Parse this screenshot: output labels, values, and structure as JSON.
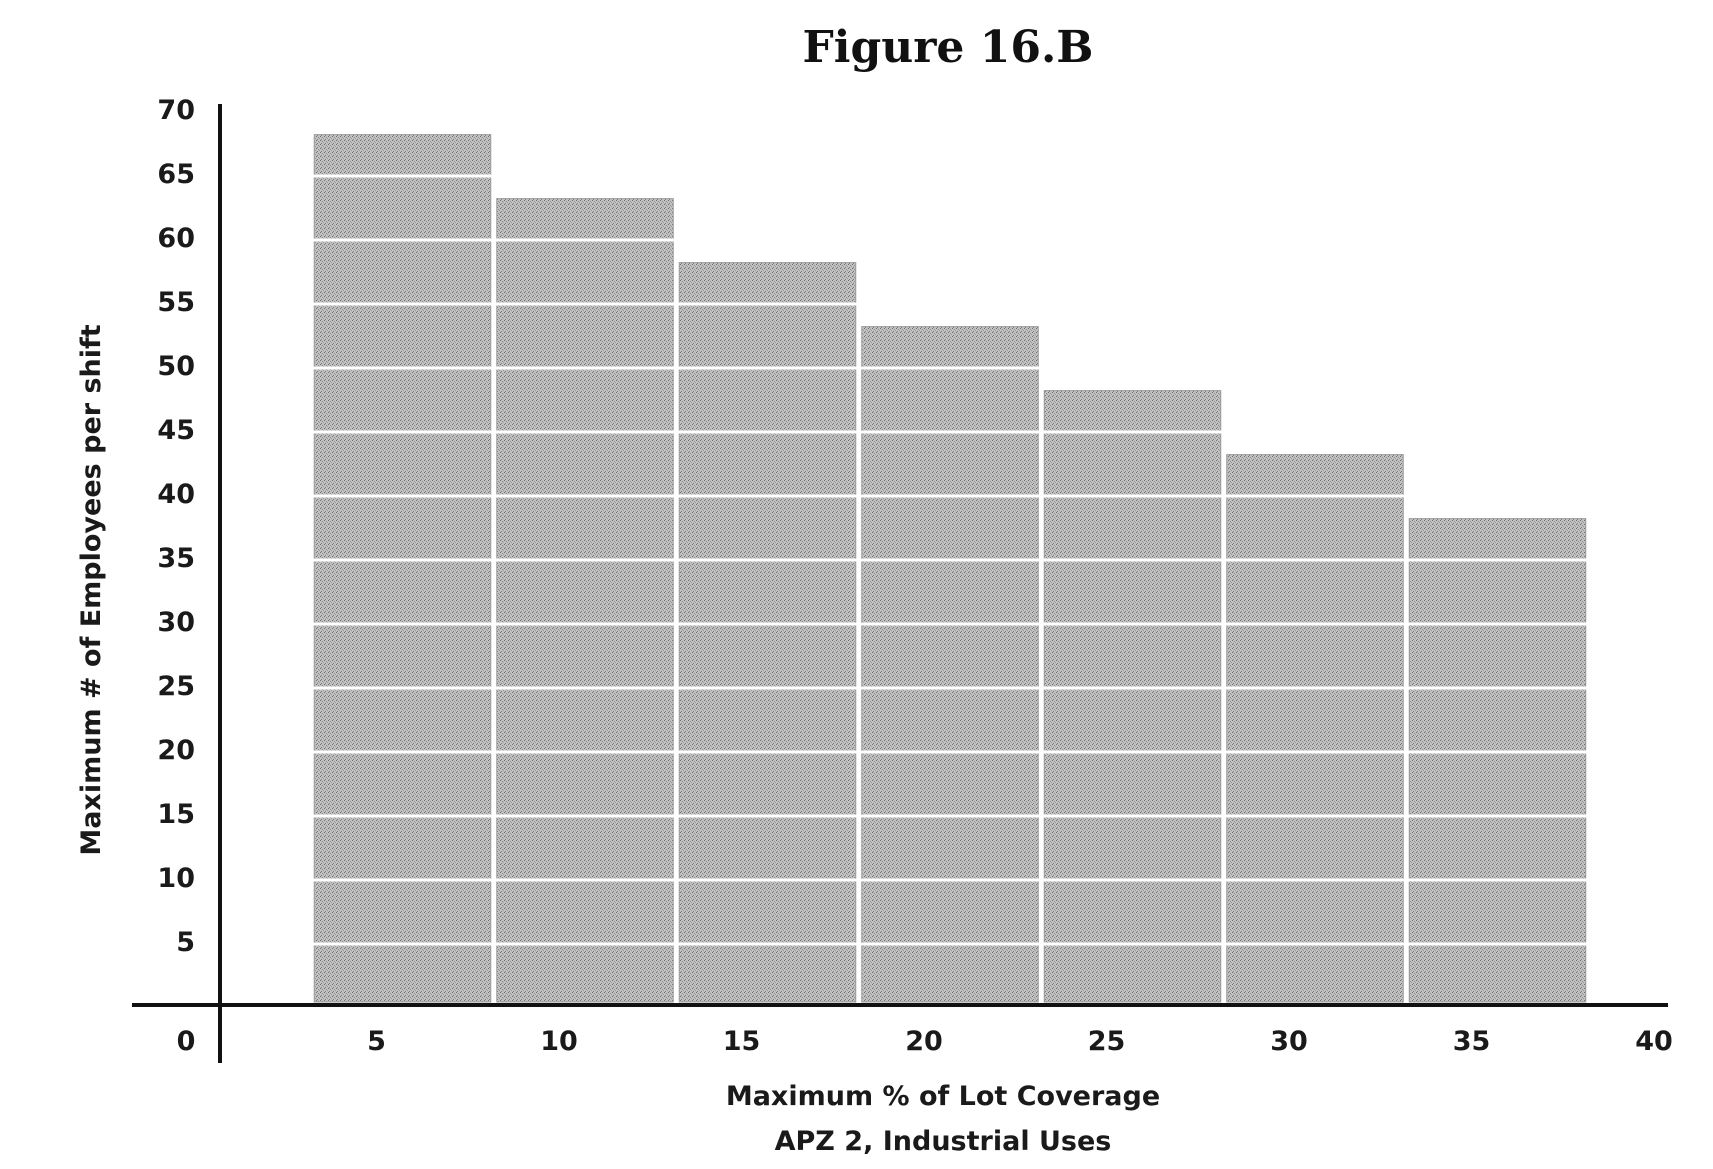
{
  "chart_data": {
    "type": "bar",
    "title": "Figure 16.B",
    "xlabel": "Maximum % of Lot Coverage",
    "subtitle": "APZ 2, Industrial Uses",
    "ylabel": "Maximum # of Employees per shift",
    "x": [
      5,
      10,
      15,
      20,
      25,
      30,
      35
    ],
    "values": [
      68,
      63,
      58,
      53,
      48,
      43,
      38
    ],
    "x_ticks": [
      "0",
      "5",
      "10",
      "15",
      "20",
      "25",
      "30",
      "35",
      "40"
    ],
    "y_ticks": [
      "5",
      "10",
      "15",
      "20",
      "25",
      "30",
      "35",
      "40",
      "45",
      "50",
      "55",
      "60",
      "65",
      "70"
    ],
    "xlim": [
      0,
      40
    ],
    "ylim": [
      0,
      70
    ],
    "grid": true,
    "legend": "none",
    "colors": {
      "bar_fill": "#b8b8b8",
      "grid_line": "#ffffff",
      "axis": "#111111"
    }
  }
}
